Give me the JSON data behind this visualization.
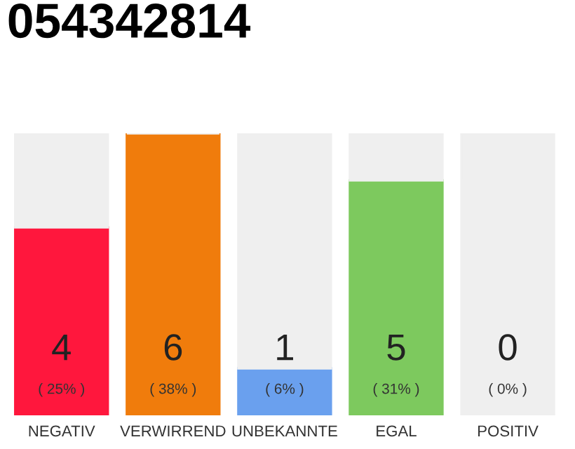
{
  "chart_data": {
    "type": "bar",
    "title": "054342814",
    "categories": [
      "NEGATIV",
      "VERWIRREND",
      "UNBEKANNTE",
      "EGAL",
      "POSITIV"
    ],
    "stacked": true,
    "series": [
      {
        "colors": [
          "#ff173d",
          "#f07c0c",
          "#6aa0ee",
          "#7dc95e",
          "#2eaa4e"
        ],
        "values": [
          4,
          6,
          1,
          5,
          0
        ],
        "value_labels": [
          "4\n( 25% )",
          "6\n( 38% )",
          "1\n( 6% )",
          "5\n( 31% )",
          "0\n( 0% )"
        ]
      },
      {
        "color": "#efefef",
        "values": [
          2,
          0,
          5,
          1,
          6
        ]
      }
    ],
    "tick_labels": "x"
  }
}
